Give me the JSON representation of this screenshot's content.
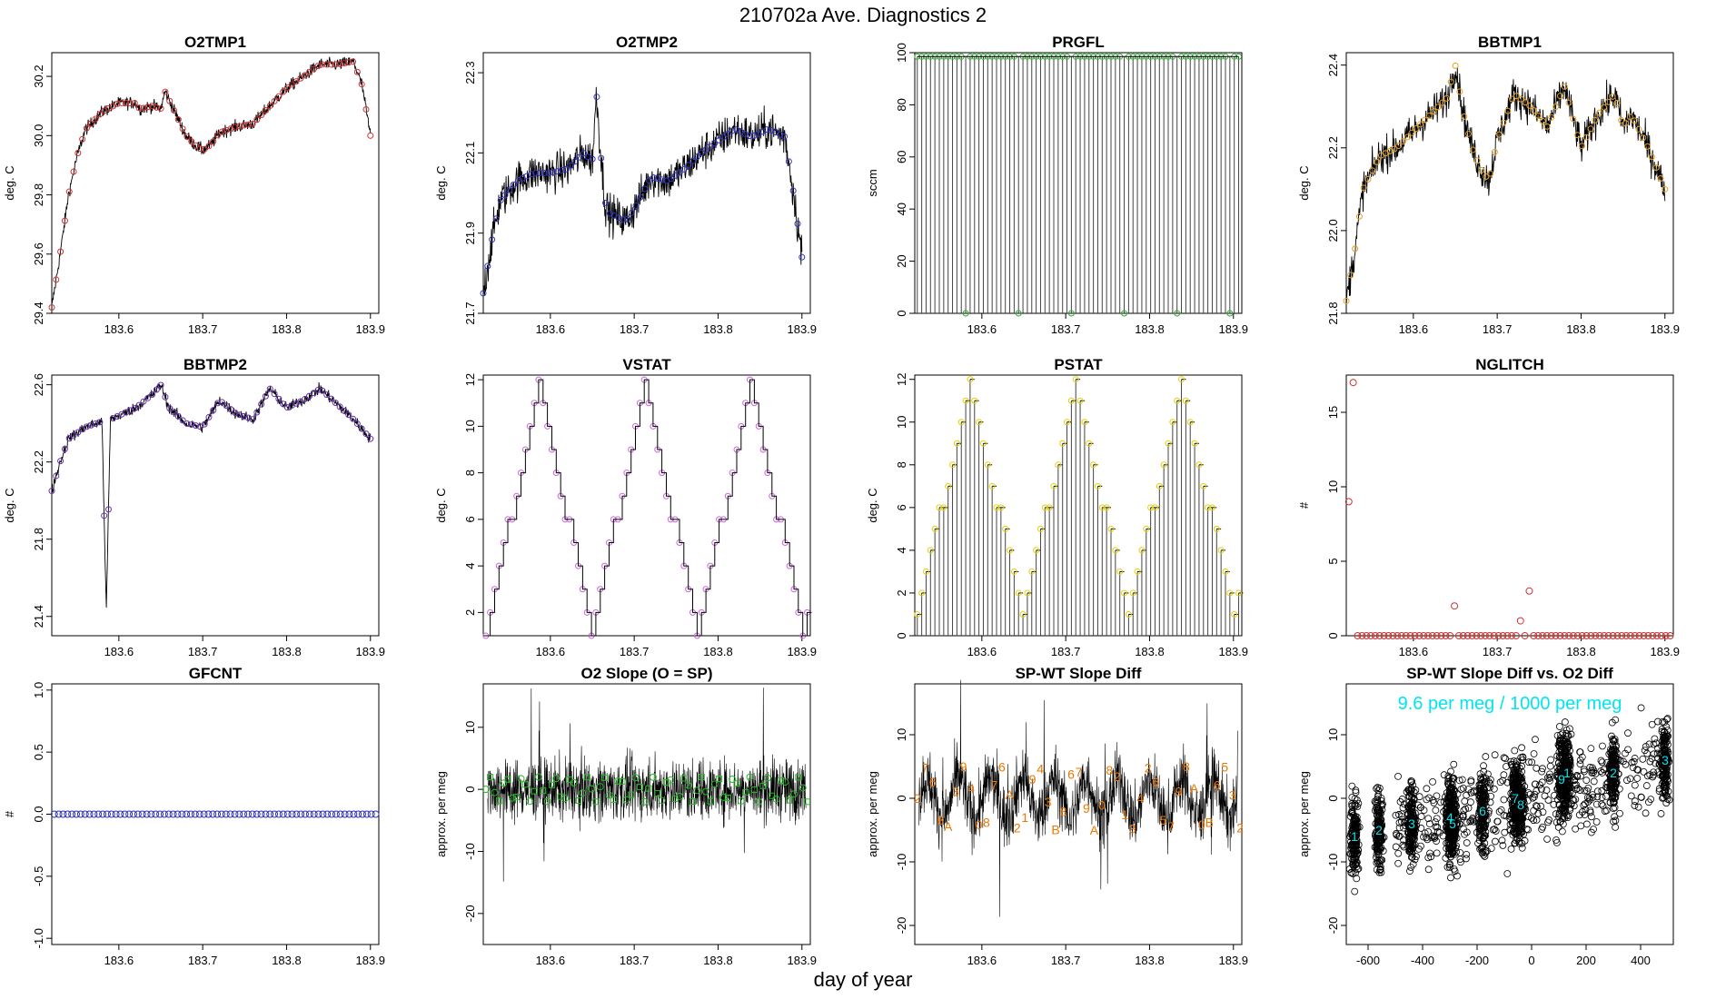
{
  "page": {
    "title": "210702a   Ave. Diagnostics 2",
    "xlabel": "day of year"
  },
  "chart_data": [
    {
      "id": "o2tmp1",
      "type": "line",
      "title": "O2TMP1",
      "ylabel": "deg. C",
      "xlim": [
        183.52,
        183.91
      ],
      "ylim": [
        29.4,
        30.28
      ],
      "yticks": [
        29.4,
        29.6,
        29.8,
        30.0,
        30.2
      ],
      "ytick_labels": [
        "29.4",
        "29.6",
        "29.8",
        "30.0",
        "30.2"
      ],
      "xticks": [
        183.6,
        183.7,
        183.8,
        183.9
      ],
      "xtick_labels": [
        "183.6",
        "183.7",
        "183.8",
        "183.9"
      ],
      "point_color": "#cc3333",
      "series_points": [
        [
          183.52,
          29.42
        ],
        [
          183.53,
          29.6
        ],
        [
          183.54,
          29.8
        ],
        [
          183.55,
          29.93
        ],
        [
          183.56,
          30.02
        ],
        [
          183.58,
          30.08
        ],
        [
          183.6,
          30.11
        ],
        [
          183.62,
          30.11
        ],
        [
          183.625,
          30.09
        ],
        [
          183.64,
          30.1
        ],
        [
          183.65,
          30.09
        ],
        [
          183.655,
          30.15
        ],
        [
          183.66,
          30.12
        ],
        [
          183.67,
          30.06
        ],
        [
          183.68,
          30.0
        ],
        [
          183.69,
          29.97
        ],
        [
          183.7,
          29.95
        ],
        [
          183.71,
          29.97
        ],
        [
          183.72,
          30.01
        ],
        [
          183.74,
          30.03
        ],
        [
          183.76,
          30.04
        ],
        [
          183.78,
          30.1
        ],
        [
          183.8,
          30.16
        ],
        [
          183.82,
          30.2
        ],
        [
          183.84,
          30.24
        ],
        [
          183.86,
          30.24
        ],
        [
          183.88,
          30.25
        ],
        [
          183.89,
          30.17
        ],
        [
          183.9,
          30.0
        ]
      ],
      "noise": 0.015
    },
    {
      "id": "o2tmp2",
      "type": "line",
      "title": "O2TMP2",
      "ylabel": "deg. C",
      "xlim": [
        183.52,
        183.91
      ],
      "ylim": [
        21.7,
        22.35
      ],
      "yticks": [
        21.7,
        21.9,
        22.1,
        22.3
      ],
      "ytick_labels": [
        "21.7",
        "21.9",
        "22.1",
        "22.3"
      ],
      "xticks": [
        183.6,
        183.7,
        183.8,
        183.9
      ],
      "xtick_labels": [
        "183.6",
        "183.7",
        "183.8",
        "183.9"
      ],
      "point_color": "#3333bb",
      "series_points": [
        [
          183.52,
          21.75
        ],
        [
          183.53,
          21.88
        ],
        [
          183.54,
          21.98
        ],
        [
          183.56,
          22.03
        ],
        [
          183.58,
          22.05
        ],
        [
          183.6,
          22.05
        ],
        [
          183.62,
          22.06
        ],
        [
          183.64,
          22.1
        ],
        [
          183.65,
          22.08
        ],
        [
          183.655,
          22.25
        ],
        [
          183.66,
          22.1
        ],
        [
          183.665,
          21.98
        ],
        [
          183.67,
          21.95
        ],
        [
          183.68,
          21.94
        ],
        [
          183.69,
          21.93
        ],
        [
          183.7,
          21.96
        ],
        [
          183.72,
          22.04
        ],
        [
          183.74,
          22.03
        ],
        [
          183.76,
          22.06
        ],
        [
          183.78,
          22.1
        ],
        [
          183.8,
          22.13
        ],
        [
          183.82,
          22.16
        ],
        [
          183.84,
          22.14
        ],
        [
          183.86,
          22.16
        ],
        [
          183.88,
          22.14
        ],
        [
          183.89,
          22.0
        ],
        [
          183.9,
          21.84
        ]
      ],
      "noise": 0.035
    },
    {
      "id": "prgfl",
      "type": "bar",
      "title": "PRGFL",
      "ylabel": "sccm",
      "xlim": [
        183.52,
        183.91
      ],
      "ylim": [
        0,
        100
      ],
      "yticks": [
        0,
        20,
        40,
        60,
        80,
        100
      ],
      "ytick_labels": [
        "0",
        "20",
        "40",
        "60",
        "80",
        "100"
      ],
      "xticks": [
        183.6,
        183.7,
        183.8,
        183.9
      ],
      "xtick_labels": [
        "183.6",
        "183.7",
        "183.8",
        "183.9"
      ],
      "point_color": "#33aa33",
      "x_start": 183.523,
      "x_step": 0.00525,
      "count": 74,
      "high": 98.5,
      "low": 0,
      "zero_every": 12
    },
    {
      "id": "bbtmp1",
      "type": "line",
      "title": "BBTMP1",
      "ylabel": "deg. C",
      "xlim": [
        183.52,
        183.91
      ],
      "ylim": [
        21.8,
        22.43
      ],
      "yticks": [
        21.8,
        22.0,
        22.2,
        22.4
      ],
      "ytick_labels": [
        "21.8",
        "22.0",
        "22.2",
        "22.4"
      ],
      "xticks": [
        183.6,
        183.7,
        183.8,
        183.9
      ],
      "xtick_labels": [
        "183.6",
        "183.7",
        "183.8",
        "183.9"
      ],
      "point_color": "#e6a020",
      "series_points": [
        [
          183.52,
          21.83
        ],
        [
          183.53,
          21.95
        ],
        [
          183.54,
          22.1
        ],
        [
          183.56,
          22.18
        ],
        [
          183.58,
          22.2
        ],
        [
          183.6,
          22.24
        ],
        [
          183.62,
          22.28
        ],
        [
          183.64,
          22.32
        ],
        [
          183.65,
          22.4
        ],
        [
          183.66,
          22.28
        ],
        [
          183.67,
          22.2
        ],
        [
          183.68,
          22.15
        ],
        [
          183.69,
          22.12
        ],
        [
          183.7,
          22.22
        ],
        [
          183.72,
          22.33
        ],
        [
          183.74,
          22.3
        ],
        [
          183.76,
          22.25
        ],
        [
          183.78,
          22.35
        ],
        [
          183.8,
          22.2
        ],
        [
          183.82,
          22.28
        ],
        [
          183.84,
          22.33
        ],
        [
          183.85,
          22.25
        ],
        [
          183.86,
          22.28
        ],
        [
          183.88,
          22.2
        ],
        [
          183.89,
          22.15
        ],
        [
          183.9,
          22.1
        ]
      ],
      "noise": 0.03
    },
    {
      "id": "bbtmp2",
      "type": "line",
      "title": "BBTMP2",
      "ylabel": "deg. C",
      "xlim": [
        183.52,
        183.91
      ],
      "ylim": [
        21.3,
        22.65
      ],
      "yticks": [
        21.4,
        21.8,
        22.2,
        22.6
      ],
      "ytick_labels": [
        "21.4",
        "21.8",
        "22.2",
        "22.6"
      ],
      "xticks": [
        183.6,
        183.7,
        183.8,
        183.9
      ],
      "xtick_labels": [
        "183.6",
        "183.7",
        "183.8",
        "183.9"
      ],
      "point_color": "#6633aa",
      "series_points": [
        [
          183.52,
          22.05
        ],
        [
          183.53,
          22.2
        ],
        [
          183.54,
          22.32
        ],
        [
          183.56,
          22.38
        ],
        [
          183.58,
          22.41
        ],
        [
          183.585,
          21.42
        ],
        [
          183.59,
          22.42
        ],
        [
          183.6,
          22.44
        ],
        [
          183.62,
          22.48
        ],
        [
          183.64,
          22.55
        ],
        [
          183.65,
          22.6
        ],
        [
          183.66,
          22.48
        ],
        [
          183.68,
          22.4
        ],
        [
          183.7,
          22.38
        ],
        [
          183.72,
          22.52
        ],
        [
          183.74,
          22.45
        ],
        [
          183.76,
          22.42
        ],
        [
          183.78,
          22.58
        ],
        [
          183.8,
          22.48
        ],
        [
          183.82,
          22.52
        ],
        [
          183.84,
          22.58
        ],
        [
          183.86,
          22.5
        ],
        [
          183.88,
          22.42
        ],
        [
          183.9,
          22.32
        ]
      ],
      "noise": 0.02
    },
    {
      "id": "vstat",
      "type": "step",
      "title": "VSTAT",
      "ylabel": "deg. C",
      "xlim": [
        183.52,
        183.91
      ],
      "ylim": [
        1,
        12.2
      ],
      "yticks": [
        2,
        4,
        6,
        8,
        10,
        12
      ],
      "ytick_labels": [
        "2",
        "4",
        "6",
        "8",
        "10",
        "12"
      ],
      "xticks": [
        183.6,
        183.7,
        183.8,
        183.9
      ],
      "xtick_labels": [
        "183.6",
        "183.7",
        "183.8",
        "183.9"
      ],
      "point_color": "#cc66dd",
      "x_start": 183.523,
      "x_step": 0.00525,
      "count": 74,
      "period": 24
    },
    {
      "id": "pstat",
      "type": "bar",
      "title": "PSTAT",
      "ylabel": "deg. C",
      "xlim": [
        183.52,
        183.91
      ],
      "ylim": [
        0,
        12.2
      ],
      "yticks": [
        0,
        2,
        4,
        6,
        8,
        10,
        12
      ],
      "ytick_labels": [
        "0",
        "2",
        "4",
        "6",
        "8",
        "10",
        "12"
      ],
      "xticks": [
        183.6,
        183.7,
        183.8,
        183.9
      ],
      "xtick_labels": [
        "183.6",
        "183.7",
        "183.8",
        "183.9"
      ],
      "point_color": "#e6d000",
      "x_start": 183.523,
      "x_step": 0.00525,
      "count": 74,
      "period": 24
    },
    {
      "id": "nglitch",
      "type": "scatter",
      "title": "NGLITCH",
      "ylabel": "#",
      "xlim": [
        183.52,
        183.91
      ],
      "ylim": [
        0,
        17.5
      ],
      "yticks": [
        0,
        5,
        10,
        15
      ],
      "ytick_labels": [
        "0",
        "5",
        "10",
        "15"
      ],
      "xticks": [
        183.6,
        183.7,
        183.8,
        183.9
      ],
      "xtick_labels": [
        "183.6",
        "183.7",
        "183.8",
        "183.9"
      ],
      "point_color": "#cc3333",
      "x_start": 183.523,
      "x_step": 0.00525,
      "count": 74,
      "special": [
        [
          0,
          9
        ],
        [
          1,
          17
        ],
        [
          24,
          2
        ],
        [
          39,
          1
        ],
        [
          41,
          3
        ]
      ]
    },
    {
      "id": "gfcnt",
      "type": "scatter",
      "title": "GFCNT",
      "ylabel": "#",
      "xlim": [
        183.52,
        183.91
      ],
      "ylim": [
        -1.05,
        1.05
      ],
      "yticks": [
        -1.0,
        -0.5,
        0.0,
        0.5,
        1.0
      ],
      "ytick_labels": [
        "-1.0",
        "-0.5",
        "0.0",
        "0.5",
        "1.0"
      ],
      "xticks": [
        183.6,
        183.7,
        183.8,
        183.9
      ],
      "xtick_labels": [
        "183.6",
        "183.7",
        "183.8",
        "183.9"
      ],
      "point_color": "#3333bb",
      "x_start": 183.523,
      "x_step": 0.00525,
      "count": 74,
      "special": []
    },
    {
      "id": "o2slope",
      "type": "line",
      "title": "O2 Slope (O = SP)",
      "ylabel": "approx. per meg",
      "xlim": [
        183.52,
        183.91
      ],
      "ylim": [
        -25,
        17
      ],
      "yticks": [
        -20,
        -10,
        0,
        10
      ],
      "ytick_labels": [
        "-20",
        "-10",
        "0",
        "10"
      ],
      "xticks": [
        183.6,
        183.7,
        183.8,
        183.9
      ],
      "xtick_labels": [
        "183.6",
        "183.7",
        "183.8",
        "183.9"
      ],
      "point_color": "#22bb22"
    },
    {
      "id": "spwt",
      "type": "line",
      "title": "SP-WT Slope Diff",
      "ylabel": "approx. per meg",
      "xlim": [
        183.52,
        183.91
      ],
      "ylim": [
        -23,
        18
      ],
      "yticks": [
        -20,
        -10,
        0,
        10
      ],
      "ytick_labels": [
        "-20",
        "-10",
        "0",
        "10"
      ],
      "xticks": [
        183.6,
        183.7,
        183.8,
        183.9
      ],
      "xtick_labels": [
        "183.6",
        "183.7",
        "183.8",
        "183.9"
      ],
      "point_color": "#ee7700",
      "labels": [
        "2",
        "7",
        "6",
        "8",
        "A",
        "3",
        "9",
        "4",
        "0",
        "8",
        "7",
        "6",
        "A",
        "2",
        "1",
        "9",
        "4",
        "3",
        "B",
        "8",
        "6",
        "7",
        "9",
        "A",
        "0",
        "8",
        "2",
        "1",
        "3",
        "4",
        "2",
        "6",
        "5",
        "7",
        "9",
        "8",
        "A",
        "0",
        "B",
        "6",
        "5",
        "3",
        "2"
      ]
    },
    {
      "id": "spwtvso2",
      "type": "scatter",
      "title": "SP-WT Slope Diff vs. O2 Diff",
      "ylabel": "approx. per meg",
      "xlim": [
        -680,
        520
      ],
      "ylim": [
        -23,
        18
      ],
      "yticks": [
        -20,
        -10,
        0,
        10
      ],
      "ytick_labels": [
        "-20",
        "-10",
        "0",
        "10"
      ],
      "xticks": [
        -600,
        -400,
        -200,
        0,
        200,
        400
      ],
      "xtick_labels": [
        "-600",
        "-400",
        "-200",
        "0",
        "200",
        "400"
      ],
      "point_color": "#00e5ee",
      "annotation": "9.6 per meg / 1000 per meg",
      "clusters": [
        [
          -650,
          -6
        ],
        [
          -560,
          -5
        ],
        [
          -440,
          -4
        ],
        [
          -300,
          -3
        ],
        [
          -290,
          -4
        ],
        [
          -180,
          -2
        ],
        [
          -60,
          0
        ],
        [
          -40,
          -1
        ],
        [
          110,
          3
        ],
        [
          130,
          4
        ],
        [
          300,
          4
        ],
        [
          490,
          6
        ]
      ]
    }
  ]
}
